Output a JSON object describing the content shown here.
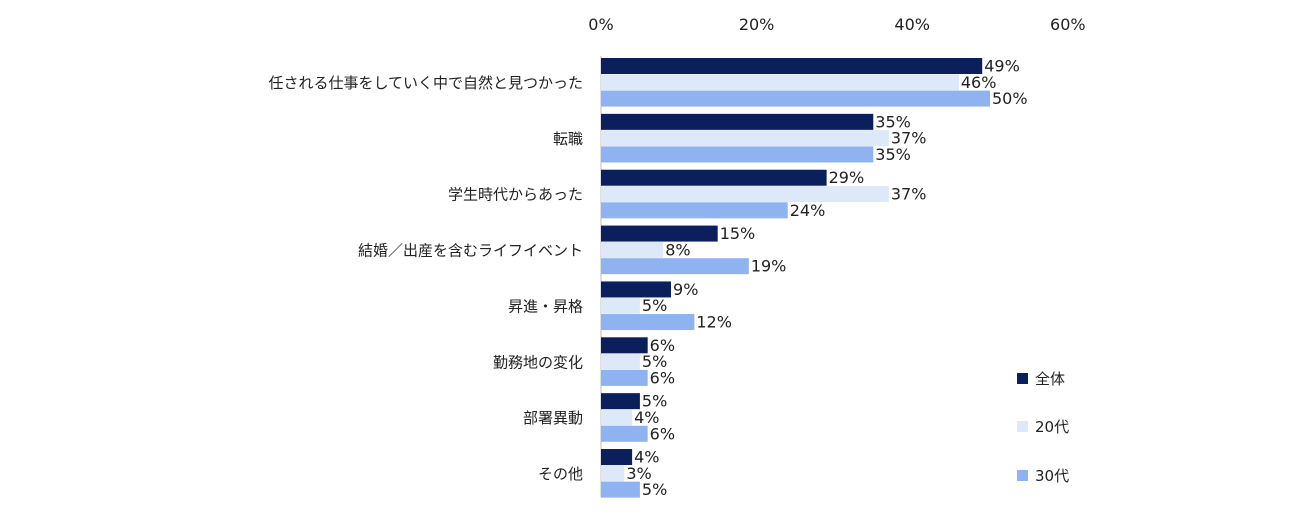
{
  "chart_data": {
    "type": "bar",
    "orientation": "horizontal",
    "categories": [
      "任される仕事をしていく中で自然と見つかった",
      "転職",
      "学生時代からあった",
      "結婚／出産を含むライフイベント",
      "昇進・昇格",
      "勤務地の変化",
      "部署異動",
      "その他"
    ],
    "series": [
      {
        "name": "全体",
        "color": "#0b1f5c",
        "values": [
          49,
          35,
          29,
          15,
          9,
          6,
          5,
          4
        ]
      },
      {
        "name": "20代",
        "color": "#dde8f8",
        "values": [
          46,
          37,
          37,
          8,
          5,
          5,
          4,
          3
        ]
      },
      {
        "name": "30代",
        "color": "#8fb3f0",
        "values": [
          50,
          35,
          24,
          19,
          12,
          6,
          6,
          5
        ]
      }
    ],
    "value_suffix": "%",
    "xlim": [
      0,
      60
    ],
    "xticks": [
      0,
      20,
      40,
      60
    ],
    "xtick_labels": [
      "0%",
      "20%",
      "40%",
      "60%"
    ],
    "axis_position": "top",
    "grid": false,
    "legend_position": "right"
  }
}
